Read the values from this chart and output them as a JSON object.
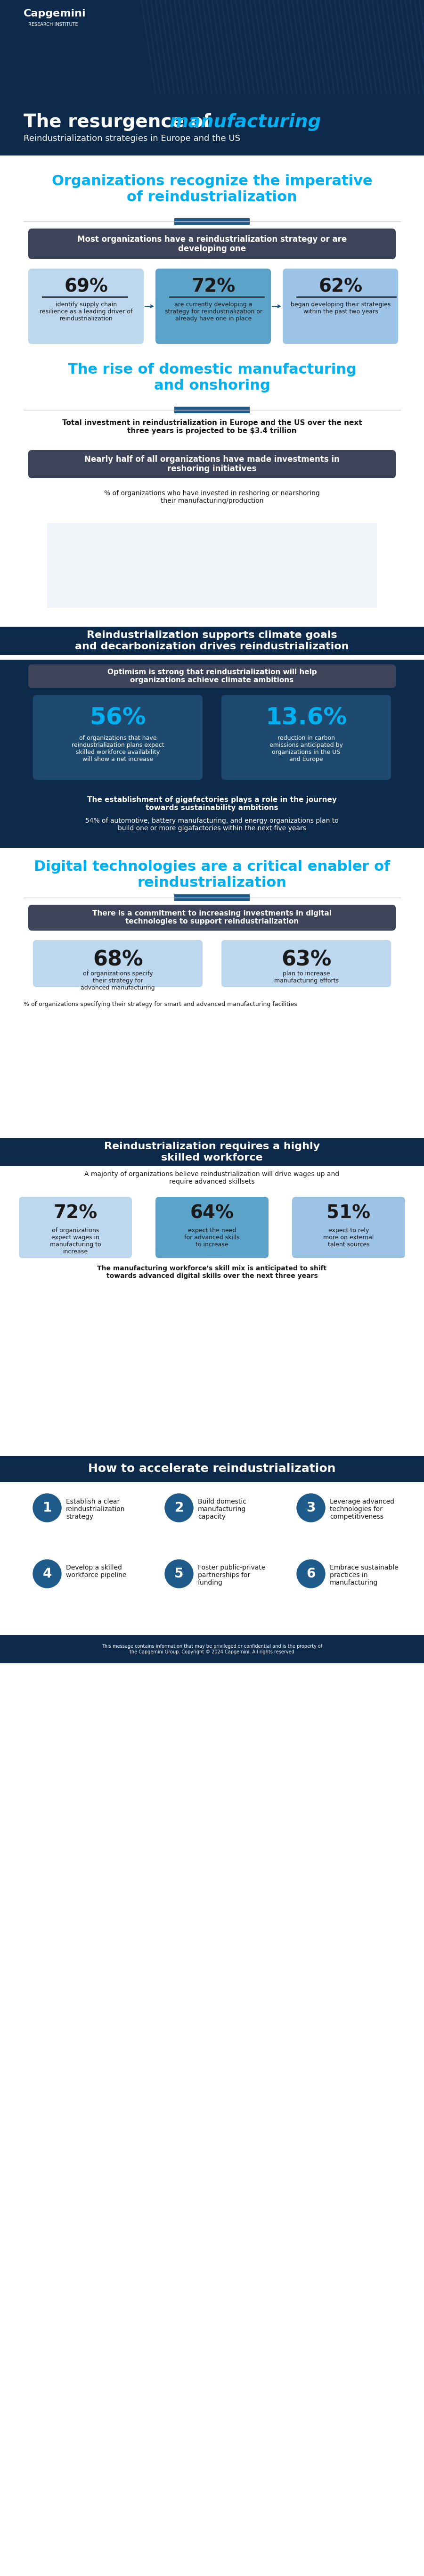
{
  "title_main": "The resurgence of",
  "title_italic": "manufacturing",
  "subtitle": "Reindustrialization strategies in Europe and the US",
  "bg_header_color": "#0d2a4a",
  "bg_white": "#ffffff",
  "cyan": "#00b0f0",
  "dark_box": "#3d4459",
  "light_blue1": "#bdd7ee",
  "light_blue2": "#5ba3c9",
  "light_blue3": "#9dc3e6",
  "section1_title": "Organizations recognize the imperative\nof reindustrialization",
  "section1_box": "Most organizations have a reindustrialization strategy or are\ndeveloping one",
  "stat1_pct": "69%",
  "stat1_text": "identify supply chain\nresilience as a leading driver of\nreindustrialization",
  "stat2_pct": "72%",
  "stat2_text": "are currently developing a\nstrategy for reindustrialization or\nalready have one in place",
  "stat3_pct": "62%",
  "stat3_text": "began developing their strategies\nwithin the past two years",
  "section2_title": "The rise of domestic manufacturing\nand onshoring",
  "section2_stat": "Total investment in reindustrialization in Europe and the US over the next\nthree years is projected to be $3.4 trillion",
  "section2_box": "Nearly half of all organizations have made investments in\nreshoring initiatives",
  "section3_title": "Reindustrialization supports climate goals\nand decarbonization drives reindustrialization",
  "section3_box": "Optimism is strong that reindustrialization will help\norganizations achieve climate ambitions",
  "stat4_pct": "56%",
  "stat4_text": "of organizations that have\nreindustrialization plans expect\nskilled workforce availability\nwill show a net increase",
  "stat5_pct": "13.6%",
  "stat5_text": "reduction in carbon\nemissions anticipated by\norganizations in the US\nand Europe",
  "section3_sub": "The establishment of gigafactories plays a role in the journey\ntowards sustainability ambitions",
  "section3_sub2": "54% of automotive, battery manufacturing, and energy organizations plan to\nbuild one or more gigafactories within the next five years",
  "section4_title": "Digital technologies are a critical enabler of\nreindustrialization",
  "section4_box": "There is a commitment to increasing investments in digital\ntechnologies to support reindustrialization",
  "stat6_pct": "68%",
  "stat6_text": "of organizations specify\ntheir strategy for\nadvanced manufacturing",
  "stat7_pct": "63%",
  "stat7_text": "plan to increase\nmanufacturing efforts",
  "section5_title": "Reindustrialization requires a highly\nskilled workforce",
  "section5_sub": "A majority of organizations believe reindustrialization will drive wages up and\nrequire advanced skillsets",
  "stat8_pct": "72%",
  "stat8_text": "of organizations\nexpect wages in\nmanufacturing to\nincrease",
  "stat9_pct": "64%",
  "stat9_text": "expect the need\nfor advanced skills\nto increase",
  "stat10_pct": "51%",
  "stat10_text": "expect to rely\nmore on external\ntalent sources",
  "section5_sub2": "The manufacturing workforce's skill mix is anticipated to shift\ntowards advanced digital skills over the next three years",
  "section6_title": "How to accelerate reindustrialization",
  "steps": [
    {
      "num": "1",
      "text": "Establish a clear\nreindustrialization\nstrategy"
    },
    {
      "num": "2",
      "text": "Build domestic\nmanufacturing\ncapacity"
    },
    {
      "num": "3",
      "text": "Leverage advanced\ntechnologies for\ncompetitiveness"
    },
    {
      "num": "4",
      "text": "Develop a skilled\nworkforce pipeline"
    },
    {
      "num": "5",
      "text": "Foster public-private\npartnerships for\nfunding"
    },
    {
      "num": "6",
      "text": "Embrace sustainable\npractices in\nmanufacturing"
    }
  ]
}
